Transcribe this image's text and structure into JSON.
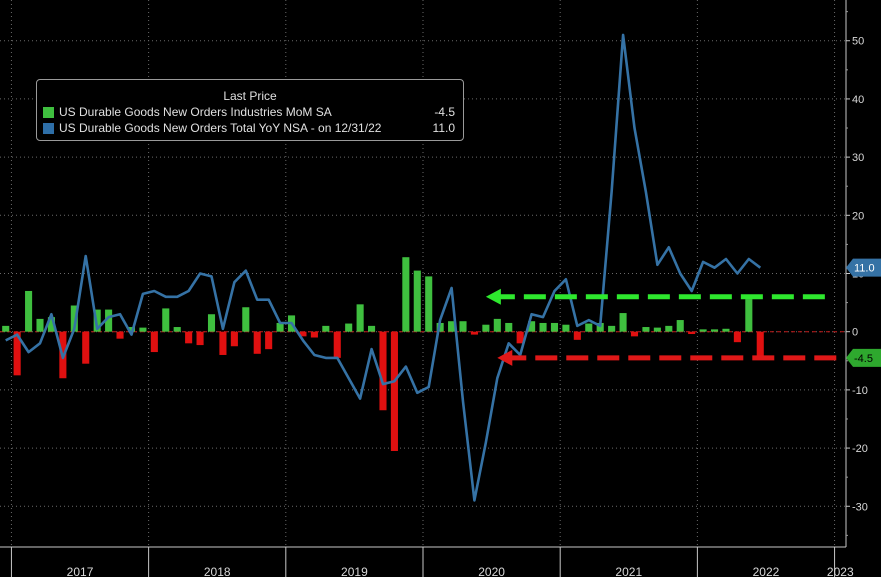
{
  "chart_data": {
    "type": "bar+line",
    "legend": {
      "title": "Last Price",
      "placement": "top-left",
      "entries": [
        {
          "label": "US Durable Goods New Orders Industries MoM SA",
          "value": "-4.5",
          "color": "#3fbf3f"
        },
        {
          "label": "US Durable Goods New Orders Total YoY NSA -  on 12/31/22",
          "value": "11.0",
          "color": "#2e6fa8"
        }
      ]
    },
    "x_axis": {
      "start": "2016-12",
      "end": "2023-01",
      "year_labels": [
        "2017",
        "2018",
        "2019",
        "2020",
        "2021",
        "2022",
        "2023"
      ]
    },
    "y_axis": {
      "position": "right",
      "range": [
        -37,
        57
      ],
      "ticks": [
        50,
        40,
        30,
        20,
        10,
        0,
        -10,
        -20,
        -30
      ],
      "tick_labels": [
        "50",
        "40",
        "30",
        "20",
        "10",
        "0",
        "-10",
        "-20",
        "-30"
      ]
    },
    "grid": true,
    "series": [
      {
        "name": "US Durable Goods New Orders Industries MoM SA",
        "type": "bar",
        "positive_color": "#3fbf3f",
        "negative_color": "#e01010",
        "start": "2016-12",
        "values": [
          1.0,
          -7.5,
          7.0,
          2.2,
          2.5,
          -8.0,
          4.5,
          -5.5,
          3.8,
          3.8,
          -1.2,
          0.8,
          0.7,
          -3.5,
          4.0,
          0.8,
          -2.0,
          -2.3,
          3.0,
          -4.0,
          -2.5,
          4.2,
          -3.8,
          -3.0,
          1.5,
          2.8,
          -0.8,
          -1.0,
          1.0,
          -4.5,
          1.4,
          4.7,
          1.0,
          -13.5,
          -20.5,
          12.8,
          10.5,
          9.5,
          1.5,
          1.8,
          1.8,
          -0.5,
          1.2,
          2.2,
          1.5,
          -2.0,
          1.8,
          1.5,
          1.5,
          1.2,
          -1.4,
          1.4,
          1.5,
          1.0,
          3.2,
          -0.8,
          0.8,
          0.7,
          1.0,
          2.0,
          -0.4,
          0.4,
          0.4,
          0.5,
          -1.8,
          5.6,
          -4.5
        ]
      },
      {
        "name": "US Durable Goods New Orders Total YoY NSA",
        "type": "line",
        "color": "#3572a5",
        "start": "2016-12",
        "values": [
          -1.5,
          -0.5,
          -3.5,
          -2.0,
          3.0,
          -4.5,
          0.5,
          13.0,
          0.5,
          2.5,
          3.0,
          -0.5,
          6.5,
          7.0,
          6.0,
          6.0,
          7.0,
          10.0,
          9.5,
          0.5,
          8.5,
          10.5,
          5.5,
          5.5,
          1.5,
          1.5,
          -1.5,
          -4.0,
          -4.5,
          -4.5,
          -8.0,
          -11.5,
          -3.0,
          -9.0,
          -8.5,
          -6.0,
          -10.5,
          -9.5,
          2.0,
          7.5,
          -12.0,
          -29.0,
          -19.0,
          -8.0,
          -2.0,
          -4.0,
          3.0,
          2.5,
          7.0,
          9.0,
          1.0,
          2.0,
          1.0,
          24.0,
          51.0,
          35.0,
          24.0,
          11.5,
          14.5,
          10.0,
          7.0,
          12.0,
          11.0,
          12.5,
          10.0,
          12.5,
          11.0
        ]
      }
    ],
    "annotations": [
      {
        "type": "dashed-arrow",
        "color": "#2ee82e",
        "from_date": "2022-12",
        "to_date": "2020-06",
        "y": 6.0
      },
      {
        "type": "dashed-arrow",
        "color": "#e01818",
        "from_date": "2023-01",
        "to_date": "2020-07",
        "y": -4.5
      }
    ],
    "value_flags": [
      {
        "text": "11.0",
        "y": 11.0,
        "bg": "#3572a5",
        "fg": "#ffffff"
      },
      {
        "text": "-4.5",
        "y": -4.5,
        "bg": "#2ea82e",
        "fg": "#000000"
      }
    ]
  }
}
